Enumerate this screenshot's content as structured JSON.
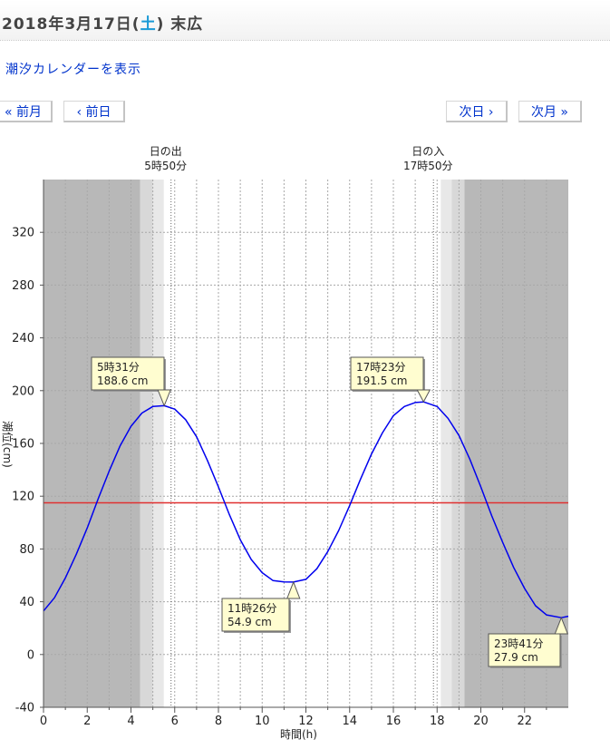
{
  "header": {
    "title_prefix": "2018年3月17日(",
    "day_of_week": "土",
    "title_suffix": ") 末広",
    "dow_color": "#1a9ad6"
  },
  "links": {
    "calendar": "潮汐カレンダーを表示"
  },
  "nav": {
    "prev_month": "« 前月",
    "prev_day": "‹ 前日",
    "next_day": "次日 ›",
    "next_month": "次月 »"
  },
  "chart_data": {
    "type": "line",
    "xlabel": "時間(h)",
    "ylabel": "潮位(cm)",
    "xlim": [
      0,
      24
    ],
    "ylim": [
      -40,
      360
    ],
    "xticks": [
      0,
      2,
      4,
      6,
      8,
      10,
      12,
      14,
      16,
      18,
      20,
      22
    ],
    "yticks": [
      -40,
      0,
      40,
      80,
      120,
      160,
      200,
      240,
      280,
      320
    ],
    "grid": true,
    "reference_line": {
      "y": 115,
      "color": "#e03030"
    },
    "curve_color": "#0000ee",
    "sun": {
      "sunrise": {
        "label": "日の出",
        "time": "5時50分",
        "hour": 5.833
      },
      "sunset": {
        "label": "日の入",
        "time": "17時50分",
        "hour": 17.833
      },
      "shading": [
        {
          "from": 0,
          "to": 4.42,
          "shade": "#b8b8b8"
        },
        {
          "from": 4.42,
          "to": 5.0,
          "shade": "#d8d8d8"
        },
        {
          "from": 5.0,
          "to": 5.5,
          "shade": "#e8e8e8"
        },
        {
          "from": 18.17,
          "to": 18.67,
          "shade": "#e8e8e8"
        },
        {
          "from": 18.67,
          "to": 19.25,
          "shade": "#d8d8d8"
        },
        {
          "from": 19.25,
          "to": 24,
          "shade": "#b8b8b8"
        }
      ]
    },
    "series": [
      {
        "x": [
          0,
          0.5,
          1,
          1.5,
          2,
          2.5,
          3,
          3.5,
          4,
          4.5,
          5,
          5.52,
          6,
          6.5,
          7,
          7.5,
          8,
          8.5,
          9,
          9.5,
          10,
          10.5,
          11,
          11.43,
          12,
          12.5,
          13,
          13.5,
          14,
          14.5,
          15,
          15.5,
          16,
          16.5,
          17,
          17.38,
          18,
          18.5,
          19,
          19.5,
          20,
          20.5,
          21,
          21.5,
          22,
          22.5,
          23,
          23.68,
          24
        ],
        "values": [
          33,
          43,
          58,
          76,
          96,
          118,
          139,
          158,
          173,
          183,
          188,
          188.6,
          186,
          178,
          165,
          147,
          127,
          106,
          87,
          72,
          62,
          56,
          55,
          54.9,
          57,
          65,
          78,
          94,
          113,
          133,
          152,
          168,
          181,
          188,
          191,
          191.5,
          188,
          179,
          166,
          148,
          127,
          105,
          85,
          66,
          50,
          37,
          30,
          27.9,
          29
        ]
      }
    ],
    "annotations": [
      {
        "x": 5.52,
        "y": 188.6,
        "time": "5時31分",
        "level": "188.6 cm"
      },
      {
        "x": 11.43,
        "y": 54.9,
        "time": "11時26分",
        "level": "54.9 cm"
      },
      {
        "x": 17.38,
        "y": 191.5,
        "time": "17時23分",
        "level": "191.5 cm"
      },
      {
        "x": 23.68,
        "y": 27.9,
        "time": "23時41分",
        "level": "27.9 cm"
      }
    ]
  }
}
